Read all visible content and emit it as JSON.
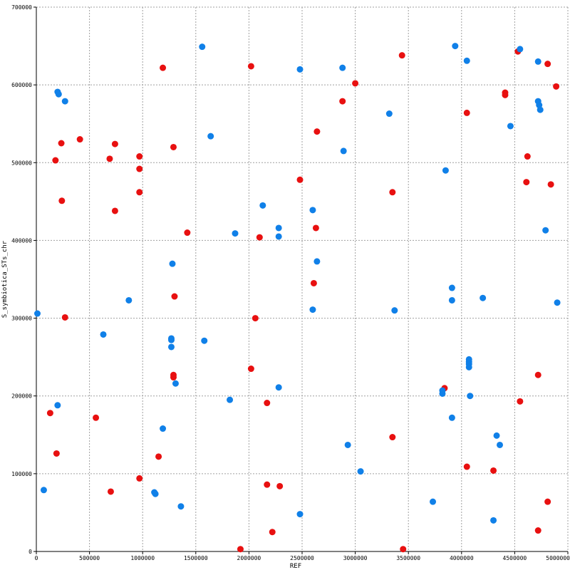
{
  "chart_data": {
    "type": "scatter",
    "xlabel": "REF",
    "ylabel": "S_symbiotica_STs_chr",
    "xlim": [
      0,
      5000000
    ],
    "ylim": [
      0,
      700000
    ],
    "grid": true,
    "x_ticks": [
      "0",
      "500000",
      "1000000",
      "1500000",
      "2000000",
      "2500000",
      "3000000",
      "3500000",
      "4000000",
      "4500000",
      "5000000"
    ],
    "y_ticks": [
      "0",
      "100000",
      "200000",
      "300000",
      "400000",
      "500000",
      "600000",
      "700000"
    ],
    "series": [
      {
        "color": "#e81010",
        "points": [
          [
            235000,
            525000
          ],
          [
            410000,
            530000
          ],
          [
            180000,
            503000
          ],
          [
            240000,
            451000
          ],
          [
            270000,
            301000
          ],
          [
            130000,
            178000
          ],
          [
            190000,
            126000
          ],
          [
            560000,
            172000
          ],
          [
            690000,
            505000
          ],
          [
            740000,
            524000
          ],
          [
            740000,
            438000
          ],
          [
            700000,
            77000
          ],
          [
            970000,
            508000
          ],
          [
            970000,
            492000
          ],
          [
            970000,
            462000
          ],
          [
            970000,
            94000
          ],
          [
            1190000,
            622000
          ],
          [
            1290000,
            520000
          ],
          [
            1420000,
            410000
          ],
          [
            1300000,
            328000
          ],
          [
            1290000,
            227000
          ],
          [
            1290000,
            224000
          ],
          [
            1150000,
            122000
          ],
          [
            2020000,
            624000
          ],
          [
            2100000,
            404000
          ],
          [
            2060000,
            300000
          ],
          [
            2020000,
            235000
          ],
          [
            2170000,
            191000
          ],
          [
            2170000,
            86000
          ],
          [
            2290000,
            84000
          ],
          [
            2220000,
            25000
          ],
          [
            1920000,
            3000
          ],
          [
            2480000,
            478000
          ],
          [
            2640000,
            540000
          ],
          [
            2630000,
            416000
          ],
          [
            2610000,
            345000
          ],
          [
            2880000,
            579000
          ],
          [
            3000000,
            602000
          ],
          [
            3440000,
            638000
          ],
          [
            3350000,
            462000
          ],
          [
            3350000,
            147000
          ],
          [
            3450000,
            3000
          ],
          [
            3840000,
            210000
          ],
          [
            4050000,
            564000
          ],
          [
            4050000,
            109000
          ],
          [
            4300000,
            104000
          ],
          [
            4410000,
            590000
          ],
          [
            4410000,
            587000
          ],
          [
            4530000,
            643000
          ],
          [
            4550000,
            193000
          ],
          [
            4610000,
            475000
          ],
          [
            4620000,
            508000
          ],
          [
            4720000,
            227000
          ],
          [
            4720000,
            27000
          ],
          [
            4810000,
            627000
          ],
          [
            4840000,
            472000
          ],
          [
            4890000,
            598000
          ],
          [
            4810000,
            64000
          ]
        ]
      },
      {
        "color": "#1080e8",
        "points": [
          [
            10000,
            306000
          ],
          [
            70000,
            79000
          ],
          [
            200000,
            188000
          ],
          [
            200000,
            591000
          ],
          [
            210000,
            588000
          ],
          [
            270000,
            579000
          ],
          [
            630000,
            279000
          ],
          [
            870000,
            323000
          ],
          [
            1110000,
            76000
          ],
          [
            1120000,
            74000
          ],
          [
            1190000,
            158000
          ],
          [
            1270000,
            274000
          ],
          [
            1270000,
            272000
          ],
          [
            1270000,
            263000
          ],
          [
            1280000,
            370000
          ],
          [
            1310000,
            216000
          ],
          [
            1360000,
            58000
          ],
          [
            1560000,
            649000
          ],
          [
            1580000,
            271000
          ],
          [
            1640000,
            534000
          ],
          [
            1820000,
            195000
          ],
          [
            1870000,
            409000
          ],
          [
            2130000,
            445000
          ],
          [
            2280000,
            416000
          ],
          [
            2280000,
            405000
          ],
          [
            2280000,
            211000
          ],
          [
            2480000,
            620000
          ],
          [
            2480000,
            48000
          ],
          [
            2600000,
            439000
          ],
          [
            2600000,
            311000
          ],
          [
            2640000,
            373000
          ],
          [
            2880000,
            622000
          ],
          [
            2890000,
            515000
          ],
          [
            2930000,
            137000
          ],
          [
            3050000,
            103000
          ],
          [
            3320000,
            563000
          ],
          [
            3370000,
            310000
          ],
          [
            3730000,
            64000
          ],
          [
            3820000,
            207000
          ],
          [
            3820000,
            203000
          ],
          [
            3850000,
            490000
          ],
          [
            3910000,
            339000
          ],
          [
            3910000,
            323000
          ],
          [
            3910000,
            172000
          ],
          [
            3940000,
            650000
          ],
          [
            4050000,
            631000
          ],
          [
            4070000,
            247000
          ],
          [
            4070000,
            244000
          ],
          [
            4070000,
            241000
          ],
          [
            4070000,
            237000
          ],
          [
            4080000,
            200000
          ],
          [
            4200000,
            326000
          ],
          [
            4300000,
            40000
          ],
          [
            4330000,
            149000
          ],
          [
            4360000,
            137000
          ],
          [
            4460000,
            547000
          ],
          [
            4550000,
            646000
          ],
          [
            4720000,
            579000
          ],
          [
            4720000,
            630000
          ],
          [
            4730000,
            574000
          ],
          [
            4740000,
            568000
          ],
          [
            4790000,
            413000
          ],
          [
            4900000,
            320000
          ]
        ]
      }
    ]
  }
}
